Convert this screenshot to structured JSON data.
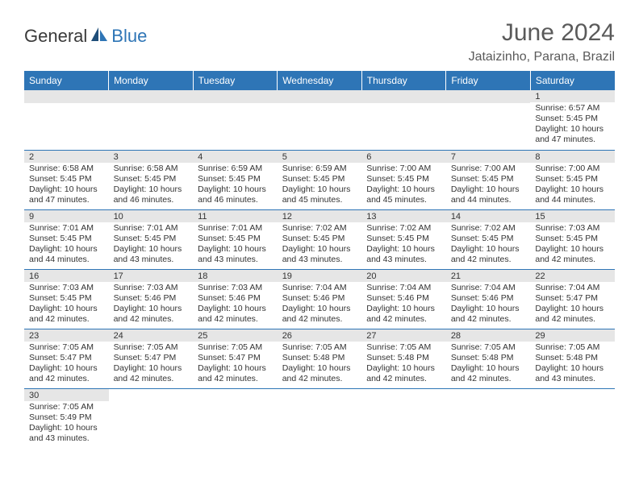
{
  "logo": {
    "text1": "General",
    "text2": "Blue"
  },
  "title": "June 2024",
  "location": "Jataizinho, Parana, Brazil",
  "colors": {
    "header_bg": "#2e75b6",
    "header_text": "#ffffff",
    "daynum_bg": "#e6e6e6",
    "border": "#2e75b6",
    "body_text": "#333333",
    "title_text": "#5a5a5a"
  },
  "weekdays": [
    "Sunday",
    "Monday",
    "Tuesday",
    "Wednesday",
    "Thursday",
    "Friday",
    "Saturday"
  ],
  "weeks": [
    [
      null,
      null,
      null,
      null,
      null,
      null,
      {
        "n": "1",
        "l": [
          "Sunrise: 6:57 AM",
          "Sunset: 5:45 PM",
          "Daylight: 10 hours",
          "and 47 minutes."
        ]
      }
    ],
    [
      {
        "n": "2",
        "l": [
          "Sunrise: 6:58 AM",
          "Sunset: 5:45 PM",
          "Daylight: 10 hours",
          "and 47 minutes."
        ]
      },
      {
        "n": "3",
        "l": [
          "Sunrise: 6:58 AM",
          "Sunset: 5:45 PM",
          "Daylight: 10 hours",
          "and 46 minutes."
        ]
      },
      {
        "n": "4",
        "l": [
          "Sunrise: 6:59 AM",
          "Sunset: 5:45 PM",
          "Daylight: 10 hours",
          "and 46 minutes."
        ]
      },
      {
        "n": "5",
        "l": [
          "Sunrise: 6:59 AM",
          "Sunset: 5:45 PM",
          "Daylight: 10 hours",
          "and 45 minutes."
        ]
      },
      {
        "n": "6",
        "l": [
          "Sunrise: 7:00 AM",
          "Sunset: 5:45 PM",
          "Daylight: 10 hours",
          "and 45 minutes."
        ]
      },
      {
        "n": "7",
        "l": [
          "Sunrise: 7:00 AM",
          "Sunset: 5:45 PM",
          "Daylight: 10 hours",
          "and 44 minutes."
        ]
      },
      {
        "n": "8",
        "l": [
          "Sunrise: 7:00 AM",
          "Sunset: 5:45 PM",
          "Daylight: 10 hours",
          "and 44 minutes."
        ]
      }
    ],
    [
      {
        "n": "9",
        "l": [
          "Sunrise: 7:01 AM",
          "Sunset: 5:45 PM",
          "Daylight: 10 hours",
          "and 44 minutes."
        ]
      },
      {
        "n": "10",
        "l": [
          "Sunrise: 7:01 AM",
          "Sunset: 5:45 PM",
          "Daylight: 10 hours",
          "and 43 minutes."
        ]
      },
      {
        "n": "11",
        "l": [
          "Sunrise: 7:01 AM",
          "Sunset: 5:45 PM",
          "Daylight: 10 hours",
          "and 43 minutes."
        ]
      },
      {
        "n": "12",
        "l": [
          "Sunrise: 7:02 AM",
          "Sunset: 5:45 PM",
          "Daylight: 10 hours",
          "and 43 minutes."
        ]
      },
      {
        "n": "13",
        "l": [
          "Sunrise: 7:02 AM",
          "Sunset: 5:45 PM",
          "Daylight: 10 hours",
          "and 43 minutes."
        ]
      },
      {
        "n": "14",
        "l": [
          "Sunrise: 7:02 AM",
          "Sunset: 5:45 PM",
          "Daylight: 10 hours",
          "and 42 minutes."
        ]
      },
      {
        "n": "15",
        "l": [
          "Sunrise: 7:03 AM",
          "Sunset: 5:45 PM",
          "Daylight: 10 hours",
          "and 42 minutes."
        ]
      }
    ],
    [
      {
        "n": "16",
        "l": [
          "Sunrise: 7:03 AM",
          "Sunset: 5:45 PM",
          "Daylight: 10 hours",
          "and 42 minutes."
        ]
      },
      {
        "n": "17",
        "l": [
          "Sunrise: 7:03 AM",
          "Sunset: 5:46 PM",
          "Daylight: 10 hours",
          "and 42 minutes."
        ]
      },
      {
        "n": "18",
        "l": [
          "Sunrise: 7:03 AM",
          "Sunset: 5:46 PM",
          "Daylight: 10 hours",
          "and 42 minutes."
        ]
      },
      {
        "n": "19",
        "l": [
          "Sunrise: 7:04 AM",
          "Sunset: 5:46 PM",
          "Daylight: 10 hours",
          "and 42 minutes."
        ]
      },
      {
        "n": "20",
        "l": [
          "Sunrise: 7:04 AM",
          "Sunset: 5:46 PM",
          "Daylight: 10 hours",
          "and 42 minutes."
        ]
      },
      {
        "n": "21",
        "l": [
          "Sunrise: 7:04 AM",
          "Sunset: 5:46 PM",
          "Daylight: 10 hours",
          "and 42 minutes."
        ]
      },
      {
        "n": "22",
        "l": [
          "Sunrise: 7:04 AM",
          "Sunset: 5:47 PM",
          "Daylight: 10 hours",
          "and 42 minutes."
        ]
      }
    ],
    [
      {
        "n": "23",
        "l": [
          "Sunrise: 7:05 AM",
          "Sunset: 5:47 PM",
          "Daylight: 10 hours",
          "and 42 minutes."
        ]
      },
      {
        "n": "24",
        "l": [
          "Sunrise: 7:05 AM",
          "Sunset: 5:47 PM",
          "Daylight: 10 hours",
          "and 42 minutes."
        ]
      },
      {
        "n": "25",
        "l": [
          "Sunrise: 7:05 AM",
          "Sunset: 5:47 PM",
          "Daylight: 10 hours",
          "and 42 minutes."
        ]
      },
      {
        "n": "26",
        "l": [
          "Sunrise: 7:05 AM",
          "Sunset: 5:48 PM",
          "Daylight: 10 hours",
          "and 42 minutes."
        ]
      },
      {
        "n": "27",
        "l": [
          "Sunrise: 7:05 AM",
          "Sunset: 5:48 PM",
          "Daylight: 10 hours",
          "and 42 minutes."
        ]
      },
      {
        "n": "28",
        "l": [
          "Sunrise: 7:05 AM",
          "Sunset: 5:48 PM",
          "Daylight: 10 hours",
          "and 42 minutes."
        ]
      },
      {
        "n": "29",
        "l": [
          "Sunrise: 7:05 AM",
          "Sunset: 5:48 PM",
          "Daylight: 10 hours",
          "and 43 minutes."
        ]
      }
    ],
    [
      {
        "n": "30",
        "l": [
          "Sunrise: 7:05 AM",
          "Sunset: 5:49 PM",
          "Daylight: 10 hours",
          "and 43 minutes."
        ]
      },
      null,
      null,
      null,
      null,
      null,
      null
    ]
  ]
}
